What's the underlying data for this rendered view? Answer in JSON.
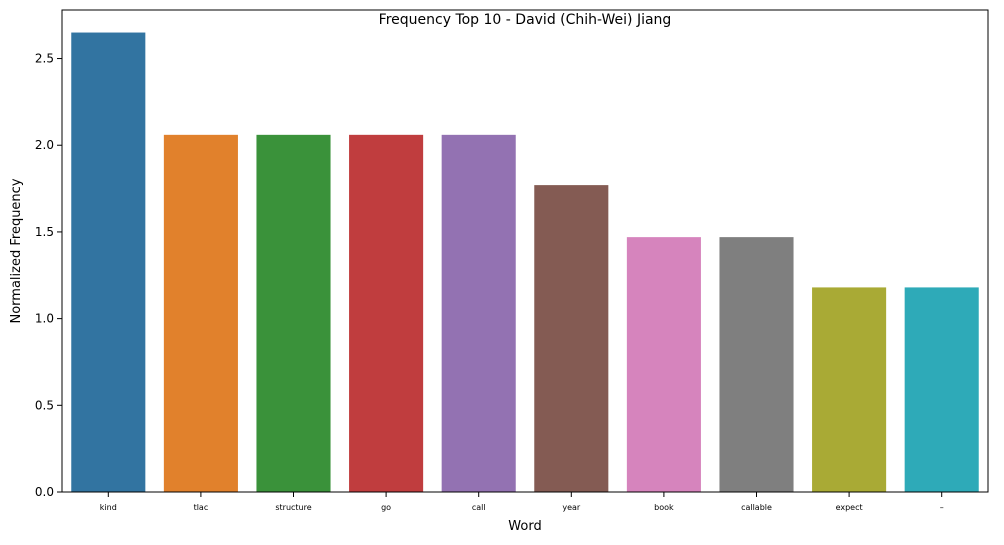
{
  "chart_data": {
    "type": "bar",
    "title": "Frequency Top 10 - David (Chih-Wei) Jiang",
    "xlabel": "Word",
    "ylabel": "Normalized Frequency",
    "categories": [
      "kind",
      "tlac",
      "structure",
      "go",
      "call",
      "year",
      "book",
      "callable",
      "expect",
      "–"
    ],
    "values": [
      2.65,
      2.06,
      2.06,
      2.06,
      2.06,
      1.77,
      1.47,
      1.47,
      1.18,
      1.18
    ],
    "colors": [
      "#3274a1",
      "#e1812c",
      "#3a923a",
      "#c03d3e",
      "#9372b2",
      "#845b53",
      "#d684bd",
      "#7f7f7f",
      "#a9aa35",
      "#2eaab8"
    ],
    "ylim": [
      0,
      2.78
    ],
    "yticks": [
      0.0,
      0.5,
      1.0,
      1.5,
      2.0,
      2.5
    ],
    "ytick_labels": [
      "0.0",
      "0.5",
      "1.0",
      "1.5",
      "2.0",
      "2.5"
    ],
    "grid": false,
    "legend": "none"
  }
}
